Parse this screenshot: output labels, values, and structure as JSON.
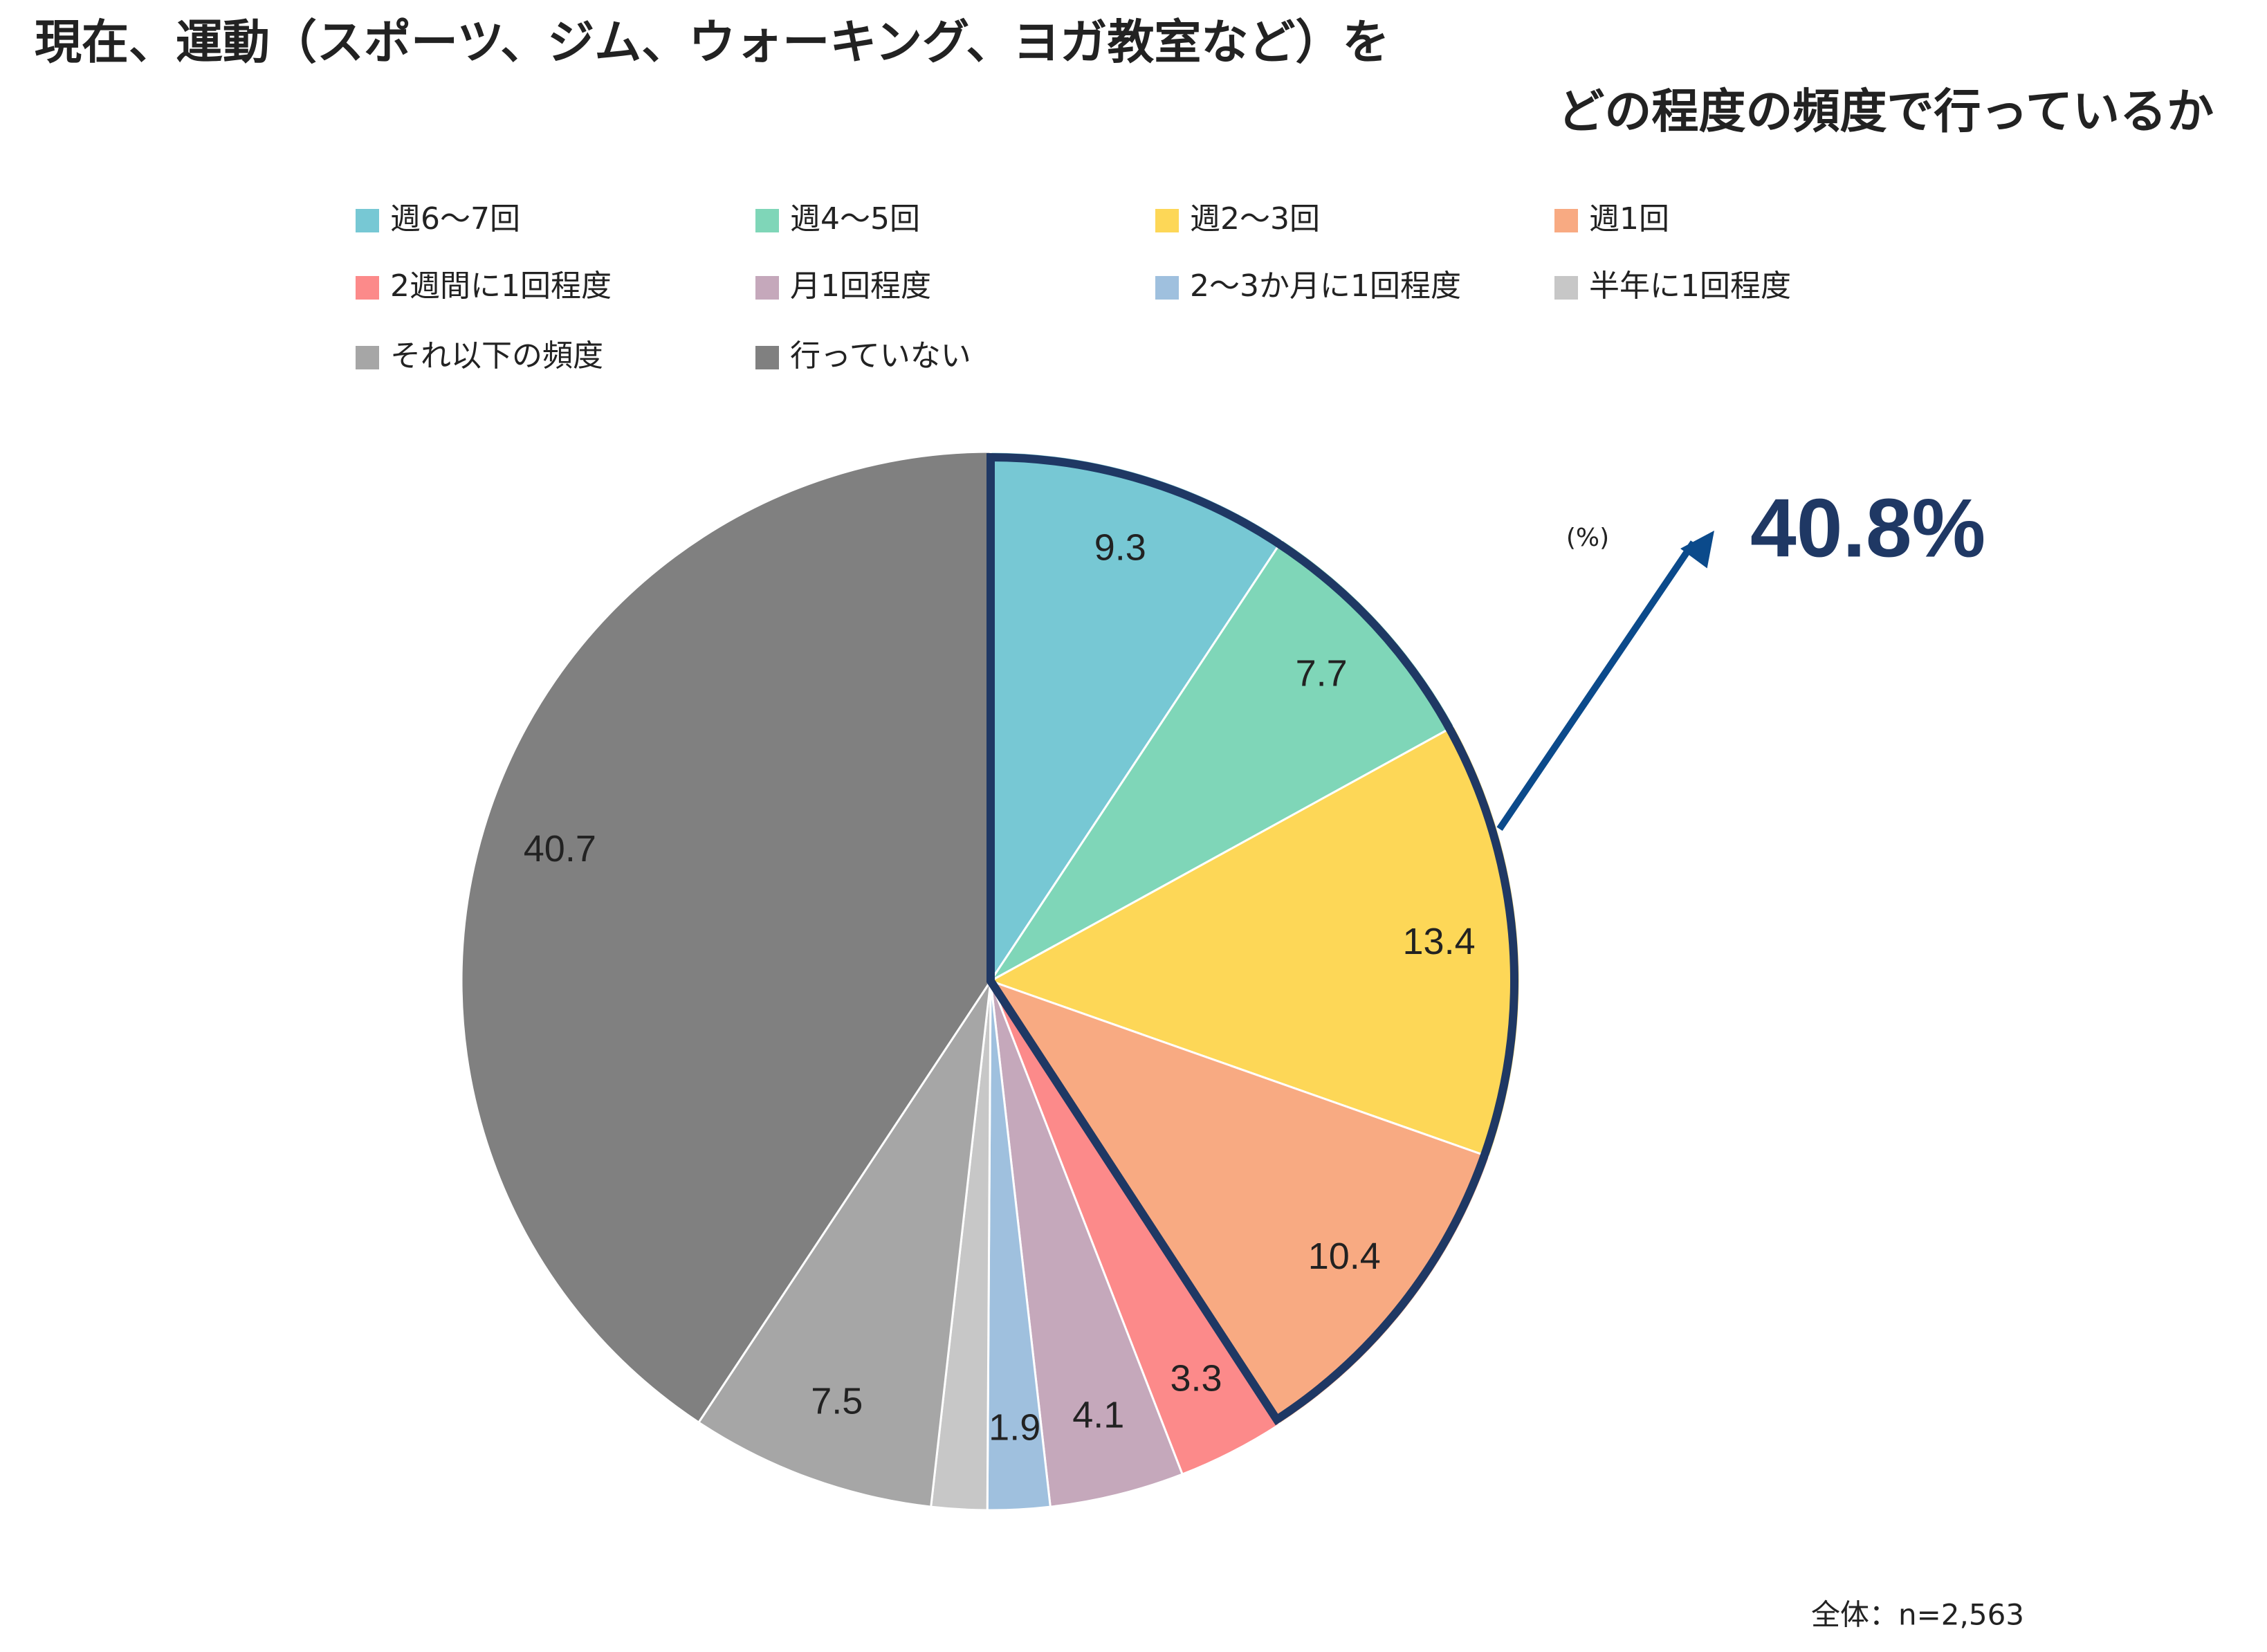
{
  "chart_data": {
    "type": "pie",
    "title": [
      "現在、運動（スポーツ、ジム、ウォーキング、ヨガ教室など）を",
      "どの程度の頻度で行っているか"
    ],
    "categories": [
      "週6～7回",
      "週4～5回",
      "週2～3回",
      "週1回",
      "2週間に1回程度",
      "月1回程度",
      "2～3か月に1回程度",
      "半年に1回程度",
      "それ以下の頻度",
      "行っていない"
    ],
    "values": [
      9.3,
      7.7,
      13.4,
      10.4,
      3.3,
      4.1,
      1.9,
      1.7,
      7.5,
      40.7
    ],
    "value_labels": [
      "9.3",
      "7.7",
      "13.4",
      "10.4",
      "3.3",
      "4.1",
      "1.9",
      null,
      "7.5",
      "40.7"
    ],
    "colors": [
      "#77c8d4",
      "#7fd6b8",
      "#fdd757",
      "#f8aa82",
      "#fc8a8a",
      "#c5a8bb",
      "#9fc0de",
      "#c7c7c7",
      "#a6a6a6",
      "#808080"
    ],
    "unit_label": "(%)",
    "annotation": {
      "value": 40.8,
      "label": "40.8%",
      "color": "#1f3864"
    },
    "footnote": "全体：n=2,563"
  }
}
